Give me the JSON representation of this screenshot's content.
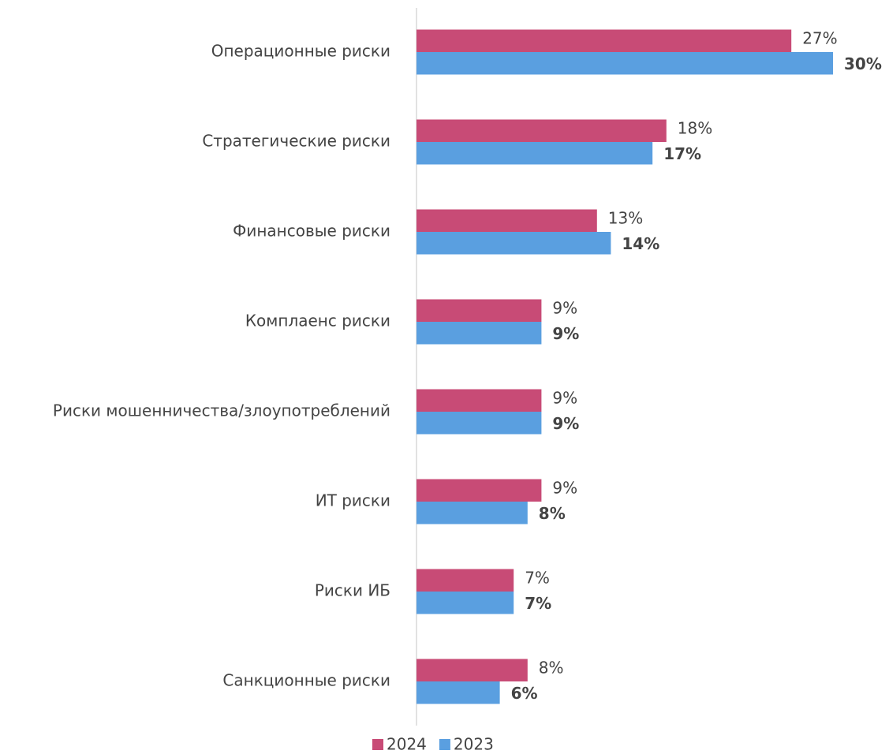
{
  "chart_data": {
    "type": "hbar",
    "categories": [
      "Операционные риски",
      "Стратегические риски",
      "Финансовые риски",
      "Комплаенс риски",
      "Риски мошенничества/злоупотреблений",
      "ИТ риски",
      "Риски ИБ",
      "Санкционные риски"
    ],
    "series": [
      {
        "name": "2024",
        "color": "#c84b76",
        "values": [
          27,
          18,
          13,
          9,
          9,
          9,
          7,
          8
        ],
        "value_labels": [
          "27%",
          "18%",
          "13%",
          "9%",
          "9%",
          "9%",
          "7%",
          "8%"
        ]
      },
      {
        "name": "2023",
        "color": "#5a9fe0",
        "values": [
          30,
          17,
          14,
          9,
          9,
          8,
          7,
          6
        ],
        "value_labels": [
          "30%",
          "17%",
          "14%",
          "9%",
          "9%",
          "8%",
          "7%",
          "6%"
        ]
      }
    ],
    "xlim": [
      0,
      30
    ],
    "legend": "bottom"
  }
}
